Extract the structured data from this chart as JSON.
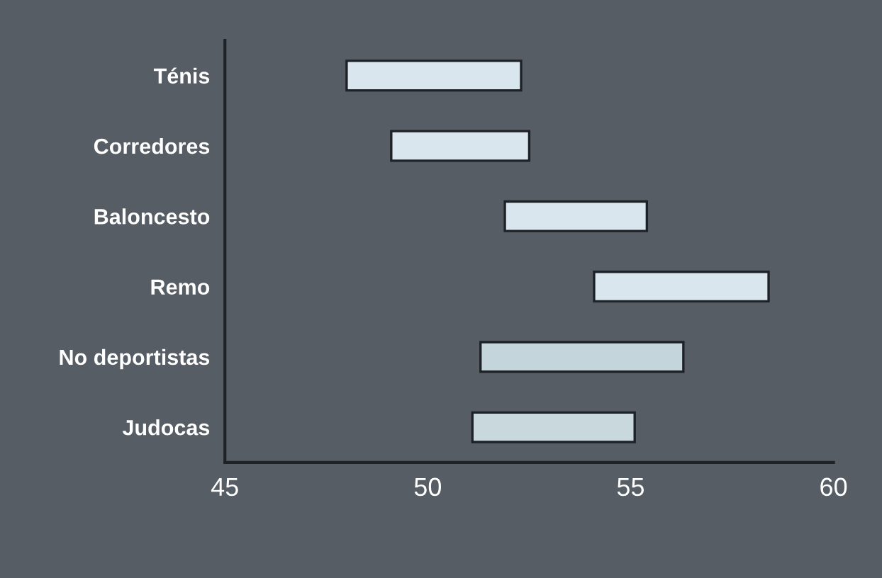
{
  "chart_data": {
    "type": "bar",
    "orientation": "horizontal",
    "categories": [
      "Ténis",
      "Corredores",
      "Baloncesto",
      "Remo",
      "No deportistas",
      "Judocas"
    ],
    "base": [
      48.0,
      49.1,
      51.9,
      54.1,
      51.3,
      51.1
    ],
    "values": [
      4.3,
      3.4,
      3.5,
      4.3,
      5.0,
      4.0
    ],
    "colors": [
      "#d9e6ee",
      "#d9e6ee",
      "#d9e6ee",
      "#d9e6ee",
      "#c5d5dc",
      "#c8d8dc"
    ],
    "xlim": [
      45,
      60
    ],
    "xticks": [
      45,
      50,
      55,
      60
    ],
    "grid": false,
    "legend": false
  }
}
